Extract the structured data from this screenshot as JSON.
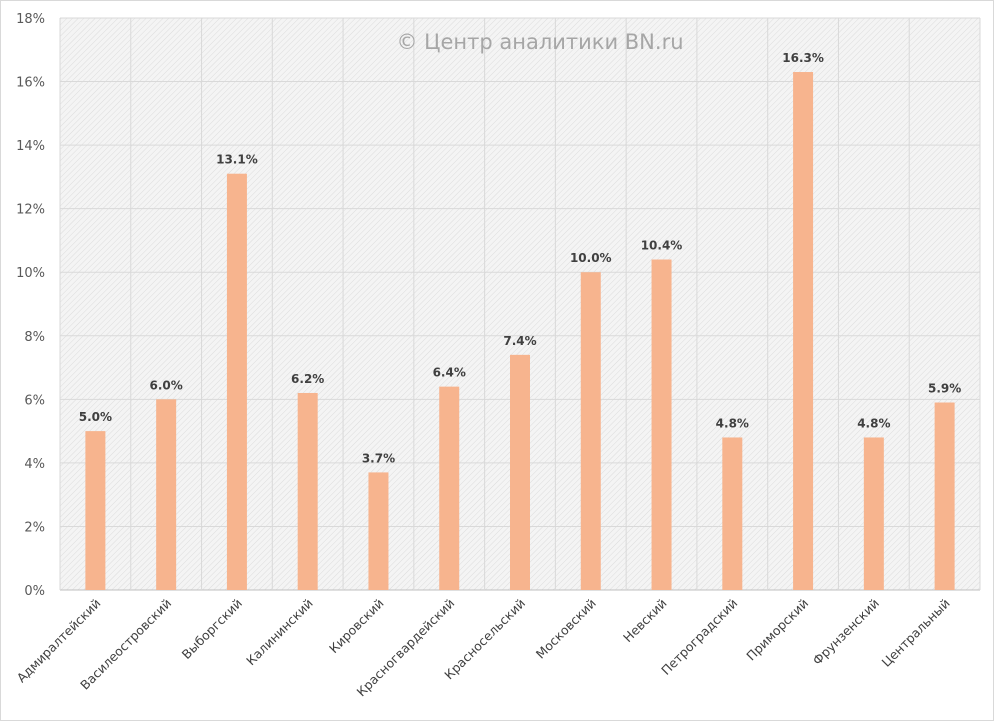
{
  "chart_data": {
    "type": "bar",
    "title": "",
    "watermark": "© Центр аналитики BN.ru",
    "xlabel": "",
    "ylabel": "",
    "ylim": [
      0,
      18
    ],
    "y_ticks": [
      "0%",
      "2%",
      "4%",
      "6%",
      "8%",
      "10%",
      "12%",
      "14%",
      "16%",
      "18%"
    ],
    "y_tick_values": [
      0,
      2,
      4,
      6,
      8,
      10,
      12,
      14,
      16,
      18
    ],
    "grid": true,
    "legend": "none",
    "bar_color": "#f7b48e",
    "categories": [
      "Адмиралтейский",
      "Василеостровский",
      "Выборгский",
      "Калининский",
      "Кировский",
      "Красногвардейский",
      "Красносельский",
      "Московский",
      "Невский",
      "Петроградский",
      "Приморский",
      "Фрунзенский",
      "Центральный"
    ],
    "values": [
      5.0,
      6.0,
      13.1,
      6.2,
      3.7,
      6.4,
      7.4,
      10.0,
      10.4,
      4.8,
      16.3,
      4.8,
      5.9
    ],
    "data_labels": [
      "5.0%",
      "6.0%",
      "13.1%",
      "6.2%",
      "3.7%",
      "6.4%",
      "7.4%",
      "10.0%",
      "10.4%",
      "4.8%",
      "16.3%",
      "4.8%",
      "5.9%"
    ]
  }
}
